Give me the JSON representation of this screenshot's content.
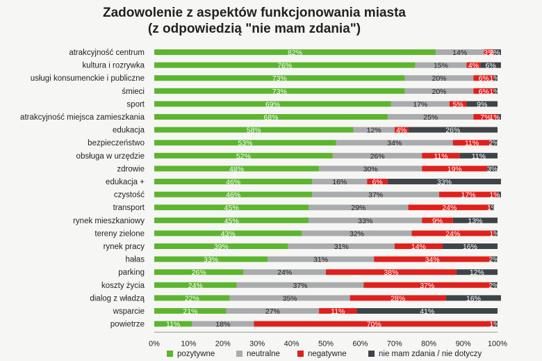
{
  "chart_data": {
    "type": "bar",
    "orientation": "horizontal",
    "stacked": "percent",
    "title": "Zadowolenie z aspektów funkcjonowania miasta",
    "subtitle": "(z odpowiedzią \"nie mam zdania\")",
    "categories": [
      "atrakcyjność centrum",
      "kultura i rozrywka",
      "usługi konsumenckie i publiczne",
      "śmieci",
      "sport",
      "atrakcyjność miejsca zamieszkania",
      "edukacja",
      "bezpieczeństwo",
      "obsługa w urzędzie",
      "zdrowie",
      "edukacja +",
      "czystość",
      "transport",
      "rynek mieszkaniowy",
      "tereny zielone",
      "rynek pracy",
      "hałas",
      "parking",
      "koszty życia",
      "dialog z władzą",
      "wsparcie",
      "powietrze"
    ],
    "series": [
      {
        "name": "pozytywne",
        "color": "#5cb52e",
        "values": [
          82,
          76,
          73,
          73,
          69,
          68,
          58,
          53,
          52,
          48,
          46,
          46,
          45,
          45,
          43,
          39,
          33,
          26,
          24,
          22,
          21,
          11
        ]
      },
      {
        "name": "neutralne",
        "color": "#a9abad",
        "values": [
          14,
          15,
          20,
          20,
          17,
          25,
          12,
          34,
          26,
          30,
          16,
          37,
          29,
          33,
          32,
          31,
          31,
          24,
          37,
          35,
          27,
          18
        ]
      },
      {
        "name": "negatywne",
        "color": "#e0201c",
        "values": [
          3,
          4,
          6,
          6,
          5,
          7,
          4,
          11,
          11,
          19,
          6,
          17,
          24,
          9,
          24,
          14,
          34,
          38,
          37,
          28,
          11,
          70
        ]
      },
      {
        "name": "nie mam zdania / nie dotyczy",
        "color": "#3e4448",
        "values": [
          2,
          6,
          1,
          1,
          9,
          1,
          26,
          2,
          11,
          3,
          33,
          1,
          1,
          13,
          1,
          16,
          2,
          12,
          2,
          16,
          41,
          1
        ]
      }
    ],
    "xaxis": {
      "min": 0,
      "max": 100,
      "ticks": [
        "0%",
        "10%",
        "20%",
        "30%",
        "40%",
        "50%",
        "60%",
        "70%",
        "80%",
        "90%",
        "100%"
      ]
    },
    "legend_position": "bottom",
    "grid": false
  }
}
